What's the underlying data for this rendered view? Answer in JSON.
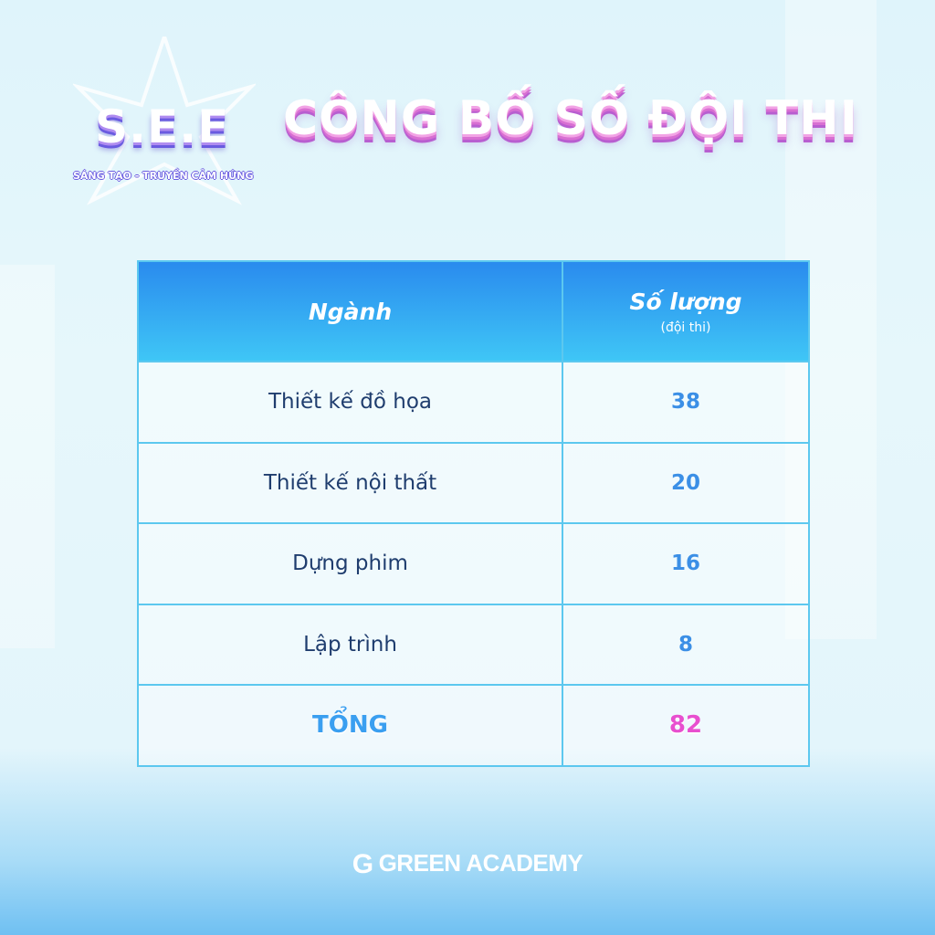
{
  "logo": {
    "name": "S.E.E",
    "tagline": "SÁNG TẠO - TRUYỀN CẢM HỨNG"
  },
  "title": "CÔNG BỐ SỐ ĐỘI THI",
  "table": {
    "headers": [
      {
        "label": "Ngành"
      },
      {
        "label": "Số lượng",
        "sub": "(đội thi)"
      }
    ],
    "rows": [
      {
        "name": "Thiết kế đồ họa",
        "count": "38"
      },
      {
        "name": "Thiết kế nội thất",
        "count": "20"
      },
      {
        "name": "Dựng phim",
        "count": "16"
      },
      {
        "name": "Lập trình",
        "count": "8"
      }
    ],
    "total": {
      "label": "TỔNG",
      "count": "82"
    }
  },
  "footer": {
    "brand": "GREEN ACADEMY",
    "icon": "g-logo-icon"
  },
  "colors": {
    "header": "#2a8bee",
    "border": "#5cc8ef",
    "total_label": "#3a9ff0",
    "total_value": "#e84fcf"
  }
}
